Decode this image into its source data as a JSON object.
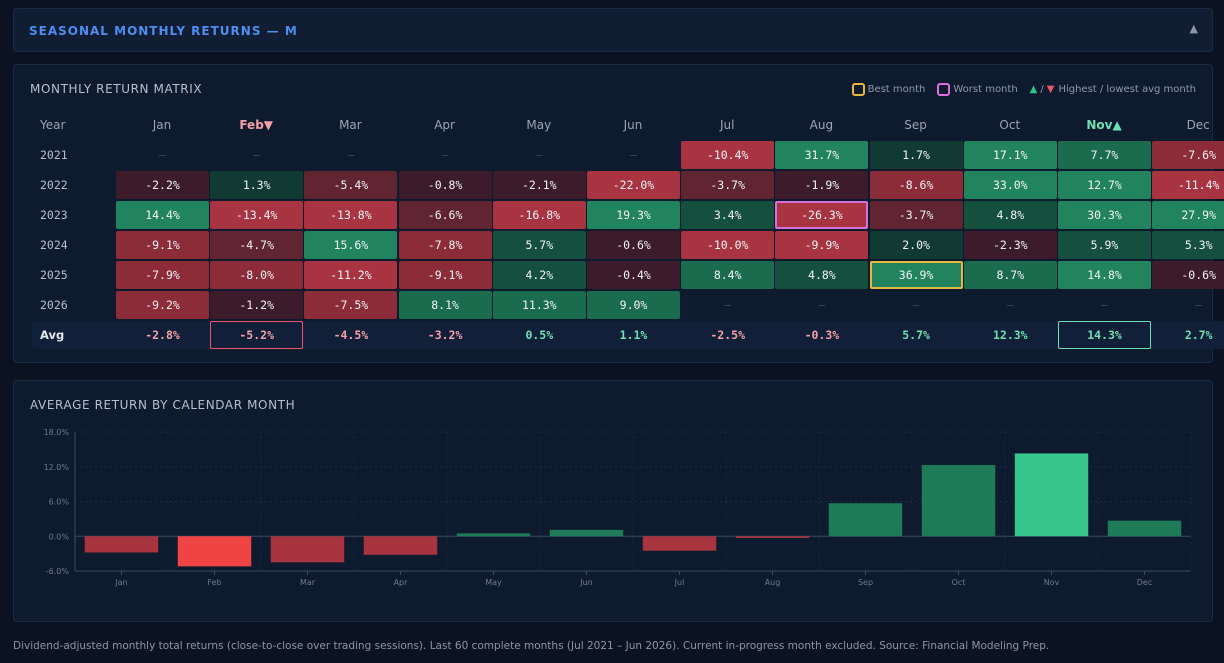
{
  "header": {
    "title": "SEASONAL MONTHLY RETURNS — M",
    "collapse_glyph": "▲"
  },
  "matrix": {
    "title": "MONTHLY RETURN MATRIX",
    "legend": {
      "best": "Best month",
      "worst": "Worst month",
      "avg_label": "Highest / lowest avg month",
      "slash": "/"
    },
    "year_header": "Year",
    "months": [
      "Jan",
      "Feb",
      "Mar",
      "Apr",
      "May",
      "Jun",
      "Jul",
      "Aug",
      "Sep",
      "Oct",
      "Nov",
      "Dec"
    ],
    "lowest_avg_month_index": 1,
    "highest_avg_month_index": 10,
    "rows": [
      {
        "year": "2021",
        "values": [
          null,
          null,
          null,
          null,
          null,
          null,
          "-10.4%",
          "31.7%",
          "1.7%",
          "17.1%",
          "7.7%",
          "-7.6%"
        ]
      },
      {
        "year": "2022",
        "values": [
          "-2.2%",
          "1.3%",
          "-5.4%",
          "-0.8%",
          "-2.1%",
          "-22.0%",
          "-3.7%",
          "-1.9%",
          "-8.6%",
          "33.0%",
          "12.7%",
          "-11.4%"
        ]
      },
      {
        "year": "2023",
        "values": [
          "14.4%",
          "-13.4%",
          "-13.8%",
          "-6.6%",
          "-16.8%",
          "19.3%",
          "3.4%",
          "-26.3%",
          "-3.7%",
          "4.8%",
          "30.3%",
          "27.9%"
        ]
      },
      {
        "year": "2024",
        "values": [
          "-9.1%",
          "-4.7%",
          "15.6%",
          "-7.8%",
          "5.7%",
          "-0.6%",
          "-10.0%",
          "-9.9%",
          "2.0%",
          "-2.3%",
          "5.9%",
          "5.3%"
        ]
      },
      {
        "year": "2025",
        "values": [
          "-7.9%",
          "-8.0%",
          "-11.2%",
          "-9.1%",
          "4.2%",
          "-0.4%",
          "8.4%",
          "4.8%",
          "36.9%",
          "8.7%",
          "14.8%",
          "-0.6%"
        ]
      },
      {
        "year": "2026",
        "values": [
          "-9.2%",
          "-1.2%",
          "-7.5%",
          "8.1%",
          "11.3%",
          "9.0%",
          null,
          null,
          null,
          null,
          null,
          null
        ]
      }
    ],
    "empty_glyph": "—",
    "best": {
      "row": 4,
      "col": 8
    },
    "worst": {
      "row": 2,
      "col": 7
    },
    "avg": {
      "label": "Avg",
      "values": [
        "-2.8%",
        "-5.2%",
        "-4.5%",
        "-3.2%",
        "0.5%",
        "1.1%",
        "-2.5%",
        "-0.3%",
        "5.7%",
        "12.3%",
        "14.3%",
        "2.7%"
      ]
    },
    "colors": {
      "best": "#e6b93c",
      "worst": "#d96fd9",
      "pos_text": "#6fe0b4",
      "neg_text": "#f4a0a8",
      "highest": "#35c48a",
      "lowest": "#f0566a"
    }
  },
  "chart_data": {
    "type": "bar",
    "title": "AVERAGE RETURN BY CALENDAR MONTH",
    "categories": [
      "Jan",
      "Feb",
      "Mar",
      "Apr",
      "May",
      "Jun",
      "Jul",
      "Aug",
      "Sep",
      "Oct",
      "Nov",
      "Dec"
    ],
    "values": [
      -2.8,
      -5.2,
      -4.5,
      -3.2,
      0.5,
      1.1,
      -2.5,
      -0.3,
      5.7,
      12.3,
      14.3,
      2.7
    ],
    "ylim": [
      -6,
      18
    ],
    "yticks": [
      -6,
      0,
      6,
      12,
      18
    ],
    "ytick_labels": [
      "-6.0%",
      "0.0%",
      "6.0%",
      "12.0%",
      "18.0%"
    ],
    "grid": true,
    "colors": {
      "positive": "#1f7a58",
      "negative": "#a83440",
      "highest": "#35c48a",
      "lowest": "#ef4444"
    }
  },
  "footnote": "Dividend-adjusted monthly total returns (close-to-close over trading sessions). Last 60 complete months (Jul 2021 – Jun 2026). Current in-progress month excluded. Source: Financial Modeling Prep."
}
